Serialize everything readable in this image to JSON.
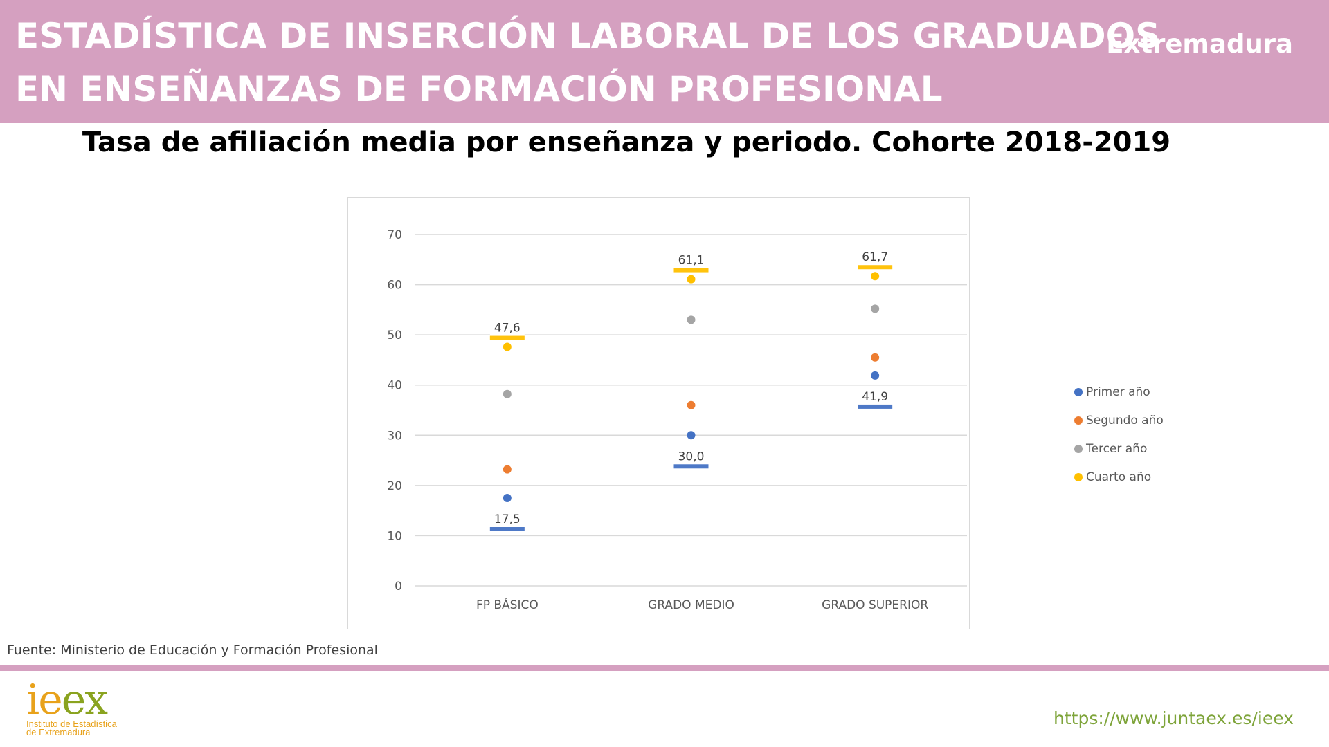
{
  "header": {
    "title_line1": "ESTADÍSTICA DE INSERCIÓN LABORAL DE LOS GRADUADOS",
    "title_line2": "EN ENSEÑANZAS DE FORMACIÓN PROFESIONAL",
    "region": "Extremadura",
    "background_color": "#d5a0c0"
  },
  "chart_title": "Tasa de afiliación media por enseñanza y periodo. Cohorte 2018-2019",
  "chart_data": {
    "type": "scatter",
    "title": "",
    "xlabel": "",
    "ylabel": "",
    "categories": [
      "FP BÁSICO",
      "GRADO MEDIO",
      "GRADO SUPERIOR"
    ],
    "ylim": [
      0,
      70
    ],
    "yticks": [
      0,
      10,
      20,
      30,
      40,
      50,
      60,
      70
    ],
    "grid": true,
    "legend_position": "right",
    "series": [
      {
        "name": "Primer año",
        "color": "#4472c4",
        "values": [
          17.5,
          30.0,
          41.9
        ],
        "labels": [
          "17,5",
          "30,0",
          "41,9"
        ],
        "label_position": "below"
      },
      {
        "name": "Segundo año",
        "color": "#ed7d31",
        "values": [
          23.2,
          36.0,
          45.5
        ],
        "labels": [
          null,
          null,
          null
        ]
      },
      {
        "name": "Tercer año",
        "color": "#a5a5a5",
        "values": [
          38.2,
          53.0,
          55.2
        ],
        "labels": [
          null,
          null,
          null
        ]
      },
      {
        "name": "Cuarto año",
        "color": "#ffc000",
        "values": [
          47.6,
          61.1,
          61.7
        ],
        "labels": [
          "47,6",
          "61,1",
          "61,7"
        ],
        "label_position": "above"
      }
    ]
  },
  "source": "Fuente: Ministerio de Educación y Formación Profesional",
  "logo": {
    "text": "ieex",
    "subtitle_line1": "Instituto de Estadística",
    "subtitle_line2": "de Extremadura"
  },
  "url": "https://www.juntaex.es/ieex"
}
